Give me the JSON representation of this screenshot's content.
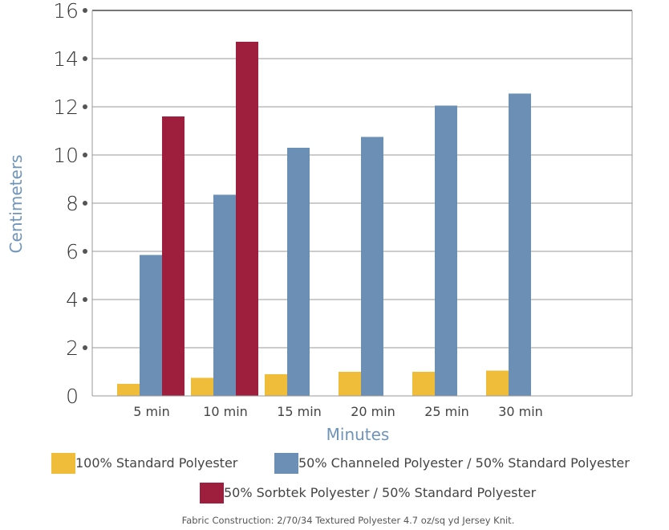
{
  "chart_data": {
    "type": "bar",
    "categories": [
      "5 min",
      "10 min",
      "15  min",
      "20 min",
      "25 min",
      "30 min"
    ],
    "series": [
      {
        "name": "100% Standard Polyester",
        "color": "#f0bd3a",
        "values": [
          0.5,
          0.75,
          0.9,
          1.0,
          1.0,
          1.05
        ]
      },
      {
        "name": "50% Channeled Polyester / 50% Standard Polyester",
        "color": "#6b8fb5",
        "values": [
          5.85,
          8.35,
          10.3,
          10.75,
          12.05,
          12.55
        ]
      },
      {
        "name": "50% Sorbtek Polyester / 50% Standard Polyester",
        "color": "#9e1e3d",
        "values": [
          11.6,
          14.7,
          null,
          null,
          null,
          null
        ]
      }
    ],
    "title": "",
    "xlabel": "Minutes",
    "ylabel": "Centimeters",
    "ylim": [
      0,
      16
    ],
    "yticks": [
      "0",
      "2",
      "4",
      "6",
      "8",
      "10",
      "12",
      "14",
      "16"
    ],
    "grid": true,
    "legend_position": "bottom"
  },
  "footnote": "Fabric Construction:  2/70/34 Textured Polyester 4.7 oz/sq yd Jersey Knit."
}
